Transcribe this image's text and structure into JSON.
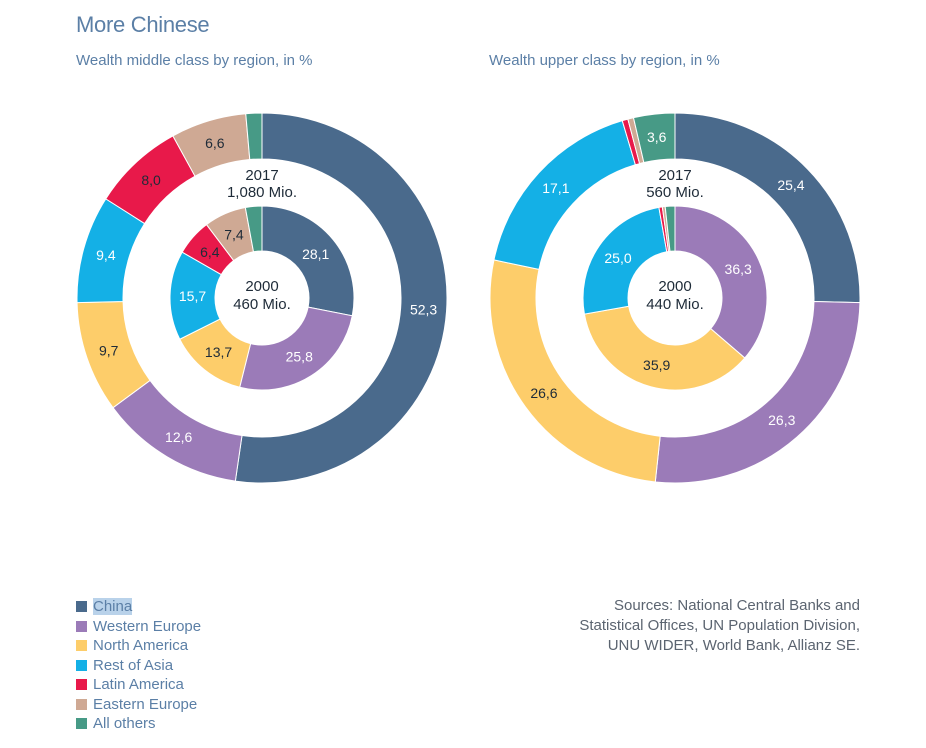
{
  "title": "More Chinese",
  "legend": [
    {
      "label": "China",
      "color": "#4a6a8c"
    },
    {
      "label": "Western Europe",
      "color": "#9b7bb8"
    },
    {
      "label": "North America",
      "color": "#fdcd6a"
    },
    {
      "label": "Rest of Asia",
      "color": "#14b0e6"
    },
    {
      "label": "Latin America",
      "color": "#e8194a"
    },
    {
      "label": "Eastern Europe",
      "color": "#cfa994"
    },
    {
      "label": "All others",
      "color": "#479a86"
    }
  ],
  "sources": [
    "Sources: National Central Banks and",
    "Statistical Offices, UN Population Division,",
    "UNU WIDER, World Bank, Allianz SE."
  ],
  "chart_data": [
    {
      "type": "pie",
      "title": "Wealth middle class by region, in %",
      "categories": [
        "China",
        "Western Europe",
        "North America",
        "Rest of Asia",
        "Latin America",
        "Eastern Europe",
        "All others"
      ],
      "series": [
        {
          "year": "2017",
          "total": "1,080 Mio.",
          "values": [
            52.3,
            12.6,
            9.7,
            9.4,
            8.0,
            6.6,
            1.4
          ],
          "labels": [
            "52,3",
            "12,6",
            "9,7",
            "9,4",
            "8,0",
            "6,6",
            ""
          ]
        },
        {
          "year": "2000",
          "total": "460 Mio.",
          "values": [
            28.1,
            25.8,
            13.7,
            15.7,
            6.4,
            7.4,
            2.9
          ],
          "labels": [
            "28,1",
            "25,8",
            "13,7",
            "15,7",
            "6,4",
            "7,4",
            ""
          ]
        }
      ]
    },
    {
      "type": "pie",
      "title": "Wealth upper class by region, in %",
      "categories": [
        "China",
        "Western Europe",
        "North America",
        "Rest of Asia",
        "Latin America",
        "Eastern Europe",
        "All others"
      ],
      "series": [
        {
          "year": "2017",
          "total": "560 Mio.",
          "values": [
            25.4,
            26.3,
            26.6,
            17.1,
            0.5,
            0.5,
            3.6
          ],
          "labels": [
            "25,4",
            "26,3",
            "26,6",
            "17,1",
            "",
            "",
            "3,6"
          ]
        },
        {
          "year": "2000",
          "total": "440 Mio.",
          "values": [
            0,
            36.3,
            35.9,
            25.0,
            0.6,
            0.5,
            1.7
          ],
          "labels": [
            "",
            "36,3",
            "35,9",
            "25,0",
            "",
            "",
            ""
          ]
        }
      ]
    }
  ]
}
